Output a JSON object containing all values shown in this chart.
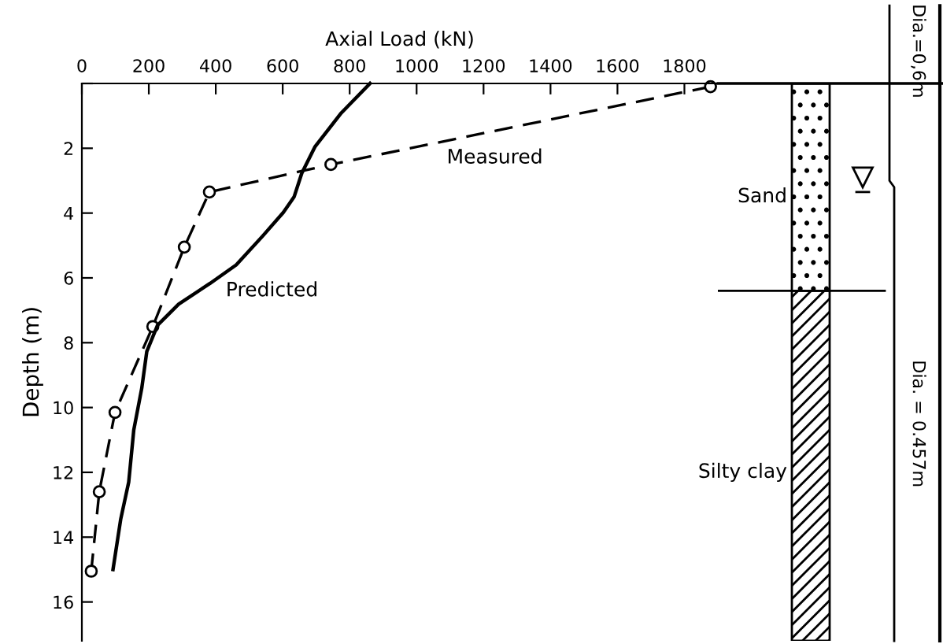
{
  "chart_data": {
    "type": "line",
    "xlabel": "Axial Load (kN)",
    "ylabel": "Depth (m)",
    "xlim": [
      0,
      1900
    ],
    "xticks": [
      0,
      200,
      400,
      600,
      800,
      1000,
      1200,
      1400,
      1600,
      1800
    ],
    "ylim": [
      17.2,
      0
    ],
    "yticks": [
      {
        "value": 0,
        "label": null
      },
      2,
      4,
      6,
      8,
      10,
      12,
      14,
      16
    ],
    "grid": false,
    "legend": false,
    "series": [
      {
        "name": "Measured",
        "color": "#000000",
        "line_style": "dashed",
        "marker": "circle",
        "x": [
          1878,
          744,
          381,
          306,
          212,
          99,
          52,
          28
        ],
        "values": [
          0.1,
          2.5,
          3.35,
          5.05,
          7.5,
          10.15,
          12.6,
          15.05
        ]
      },
      {
        "name": "Predicted",
        "color": "#000000",
        "line_style": "solid",
        "marker": "none",
        "x": [
          861,
          775,
          696,
          657,
          634,
          602,
          540,
          461,
          383,
          289,
          226,
          194,
          179,
          155,
          140,
          116,
          93
        ],
        "values": [
          0,
          0.91,
          1.96,
          2.77,
          3.5,
          3.98,
          4.71,
          5.6,
          6.17,
          6.81,
          7.46,
          8.27,
          9.4,
          10.7,
          12.3,
          13.45,
          15.0
        ]
      }
    ],
    "annotations": [
      "Sand",
      "Silty clay",
      "Dia.=0,6m",
      "Dia. = 0.457m"
    ]
  }
}
